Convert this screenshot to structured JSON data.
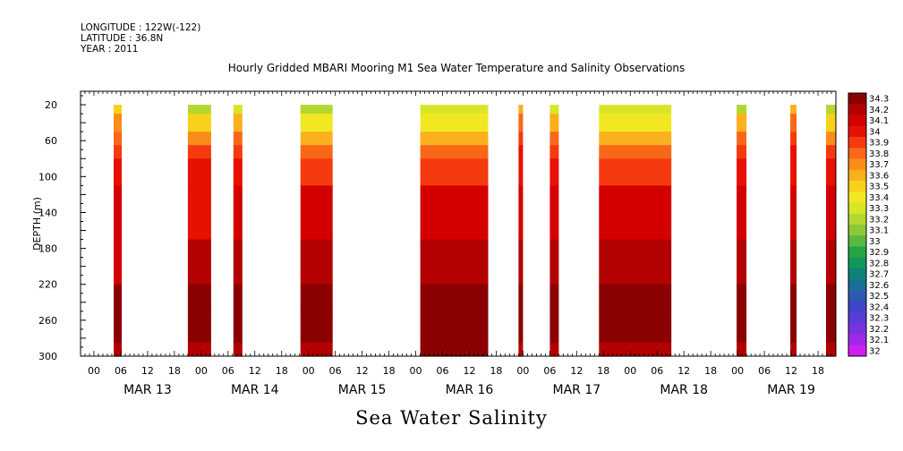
{
  "header": {
    "longitude": "LONGITUDE : 122W(-122)",
    "latitude": "LATITUDE : 36.8N",
    "year": "YEAR : 2011"
  },
  "chart_data": {
    "type": "heatmap",
    "title": "Hourly Gridded MBARI Mooring M1 Sea Water Temperature and Salinity Observations",
    "bottom_title": "Sea Water Salinity",
    "ylabel": "DEPTH (m)",
    "xlabel": "",
    "x_range_hours": [
      -3,
      166
    ],
    "ylim": [
      300,
      5
    ],
    "y_ticks": [
      20,
      60,
      100,
      140,
      180,
      220,
      260,
      300
    ],
    "x_hour_ticks": [
      "00",
      "06",
      "12",
      "18",
      "00",
      "06",
      "12",
      "18",
      "00",
      "06",
      "12",
      "18",
      "00",
      "06",
      "12",
      "18",
      "00",
      "06",
      "12",
      "18",
      "00",
      "06",
      "12",
      "18",
      "00",
      "06",
      "12",
      "18"
    ],
    "day_labels": [
      {
        "label": "MAR 13",
        "hour": 12
      },
      {
        "label": "MAR 14",
        "hour": 36
      },
      {
        "label": "MAR 15",
        "hour": 60
      },
      {
        "label": "MAR 16",
        "hour": 84
      },
      {
        "label": "MAR 17",
        "hour": 108
      },
      {
        "label": "MAR 18",
        "hour": 132
      },
      {
        "label": "MAR 19",
        "hour": 156
      }
    ],
    "depth_levels": [
      20,
      40,
      60,
      70,
      90,
      130,
      210,
      230,
      270,
      300
    ],
    "segments": [
      {
        "start": 4.4,
        "end": 6.2,
        "profile": [
          33.5,
          33.7,
          33.8,
          33.9,
          34.0,
          34.1,
          34.1,
          34.3,
          34.3,
          34.2
        ]
      },
      {
        "start": 21.0,
        "end": 26.2,
        "profile": [
          33.2,
          33.5,
          33.7,
          33.9,
          34.0,
          34.0,
          34.2,
          34.3,
          34.3,
          34.2
        ]
      },
      {
        "start": 31.2,
        "end": 33.2,
        "profile": [
          33.3,
          33.6,
          33.8,
          33.9,
          34.0,
          34.1,
          34.2,
          34.3,
          34.3,
          34.2
        ]
      },
      {
        "start": 46.2,
        "end": 53.4,
        "profile": [
          33.2,
          33.4,
          33.6,
          33.8,
          33.9,
          34.1,
          34.2,
          34.3,
          34.3,
          34.2
        ]
      },
      {
        "start": 73.0,
        "end": 88.2,
        "profile": [
          33.3,
          33.4,
          33.6,
          33.8,
          33.9,
          34.1,
          34.2,
          34.3,
          34.3,
          34.3
        ]
      },
      {
        "start": 95.0,
        "end": 96.0,
        "profile": [
          33.6,
          33.8,
          33.9,
          34.0,
          34.0,
          34.1,
          34.2,
          34.3,
          34.3,
          34.2
        ]
      },
      {
        "start": 102.0,
        "end": 104.0,
        "profile": [
          33.3,
          33.6,
          33.8,
          33.9,
          34.0,
          34.1,
          34.2,
          34.3,
          34.3,
          34.2
        ]
      },
      {
        "start": 113.0,
        "end": 129.2,
        "profile": [
          33.3,
          33.4,
          33.6,
          33.8,
          33.9,
          34.1,
          34.2,
          34.3,
          34.3,
          34.2
        ]
      },
      {
        "start": 143.8,
        "end": 146.0,
        "profile": [
          33.2,
          33.6,
          33.8,
          33.9,
          34.0,
          34.1,
          34.2,
          34.3,
          34.3,
          34.2
        ]
      },
      {
        "start": 155.8,
        "end": 157.2,
        "profile": [
          33.6,
          33.8,
          33.9,
          34.0,
          34.0,
          34.1,
          34.2,
          34.3,
          34.3,
          34.2
        ]
      },
      {
        "start": 163.8,
        "end": 166.0,
        "profile": [
          33.2,
          33.5,
          33.7,
          33.9,
          34.0,
          34.1,
          34.2,
          34.3,
          34.3,
          34.2
        ]
      }
    ],
    "colorbar": {
      "labels": [
        "34.3",
        "34.2",
        "34.1",
        "34",
        "33.9",
        "33.8",
        "33.7",
        "33.6",
        "33.5",
        "33.4",
        "33.3",
        "33.2",
        "33.1",
        "33",
        "32.9",
        "32.8",
        "32.7",
        "32.6",
        "32.5",
        "32.4",
        "32.3",
        "32.2",
        "32.1",
        "32"
      ],
      "colors": [
        "#8b0000",
        "#b30000",
        "#d40000",
        "#e81000",
        "#f53a10",
        "#f86818",
        "#fa8c1a",
        "#fbb01e",
        "#f8d21a",
        "#f2e822",
        "#d8e628",
        "#b4d730",
        "#8ec83a",
        "#58b840",
        "#24a648",
        "#10955a",
        "#0f8277",
        "#1b6e95",
        "#2d5ab0",
        "#3f46c8",
        "#5a3ad8",
        "#7a32e0",
        "#a028e8",
        "#d01ef0"
      ]
    }
  }
}
